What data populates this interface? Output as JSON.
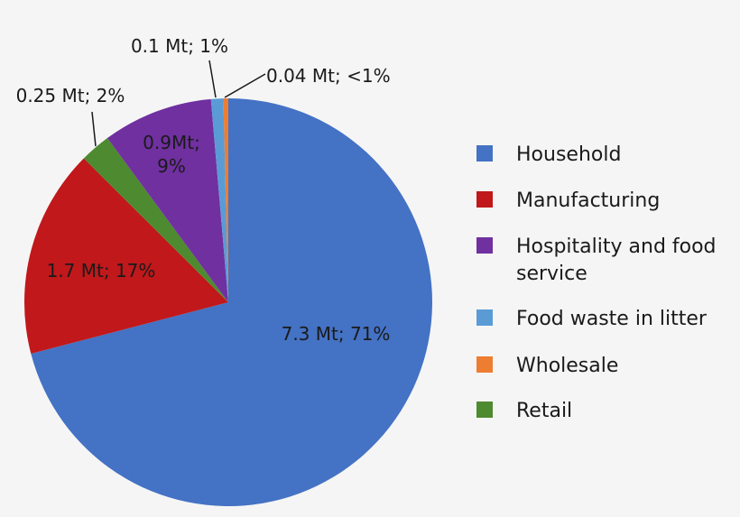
{
  "chart_data": {
    "type": "pie",
    "title": "",
    "legend_position": "right",
    "slices": [
      {
        "name": "Household",
        "value": 7.3,
        "label_lines": [
          "7.3 Mt; 71%"
        ],
        "color": "#4472c4"
      },
      {
        "name": "Manufacturing",
        "value": 1.7,
        "label_lines": [
          "1.7 Mt; 17%"
        ],
        "color": "#c0181b"
      },
      {
        "name": "Retail",
        "value": 0.25,
        "label_lines": [
          "0.25 Mt; 2%"
        ],
        "color": "#4e8a30"
      },
      {
        "name": "Hospitality and food service",
        "value": 0.9,
        "label_lines": [
          "0.9Mt;",
          "9%"
        ],
        "color": "#7030a0"
      },
      {
        "name": "Food waste in litter",
        "value": 0.1,
        "label_lines": [
          "0.1 Mt; 1%"
        ],
        "color": "#5b9bd5"
      },
      {
        "name": "Wholesale",
        "value": 0.04,
        "label_lines": [
          "0.04 Mt; <1%"
        ],
        "color": "#ed7d31"
      }
    ],
    "legend": [
      {
        "name": "Household",
        "lines": [
          "Household"
        ],
        "color": "#4472c4"
      },
      {
        "name": "Manufacturing",
        "lines": [
          "Manufacturing"
        ],
        "color": "#c0181b"
      },
      {
        "name": "Hospitality and food service",
        "lines": [
          "Hospitality and food",
          "service"
        ],
        "color": "#7030a0"
      },
      {
        "name": "Food waste in litter",
        "lines": [
          "Food waste in litter"
        ],
        "color": "#5b9bd5"
      },
      {
        "name": "Wholesale",
        "lines": [
          "Wholesale"
        ],
        "color": "#ed7d31"
      },
      {
        "name": "Retail",
        "lines": [
          "Retail"
        ],
        "color": "#4e8a30"
      }
    ]
  }
}
